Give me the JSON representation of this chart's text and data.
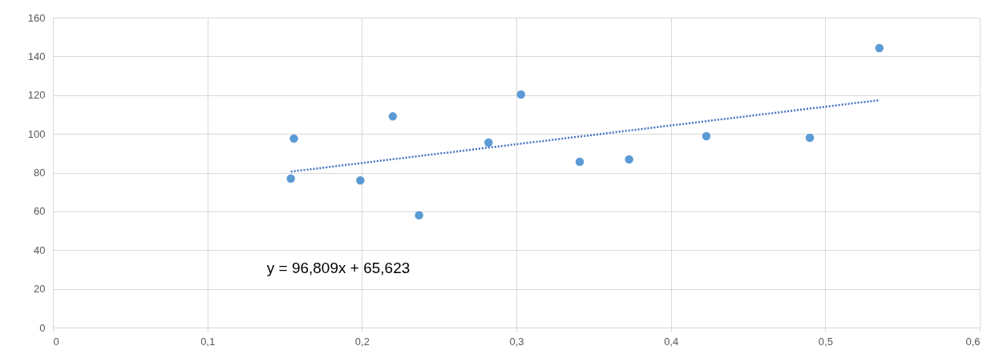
{
  "chart_data": {
    "type": "scatter",
    "marker": "circle",
    "grid": true,
    "xlim": [
      0,
      0.6
    ],
    "xticks": [
      0,
      {
        "value": 0.1,
        "label": "0,1"
      },
      {
        "value": 0.2,
        "label": "0,2"
      },
      {
        "value": 0.3,
        "label": "0,3"
      },
      {
        "value": 0.4,
        "label": "0,4"
      },
      {
        "value": 0.5,
        "label": "0,5"
      },
      {
        "value": 0.6,
        "label": "0,6"
      }
    ],
    "ylim": [
      0,
      160
    ],
    "yticks": [
      0,
      20,
      40,
      60,
      80,
      100,
      120,
      140,
      160
    ],
    "series": [
      {
        "type": "scatter",
        "color": "#5b9bd5",
        "x": [
          0.156,
          0.154,
          0.199,
          0.22,
          0.237,
          0.282,
          0.303,
          0.341,
          0.373,
          0.423,
          0.49,
          0.535
        ],
        "values": [
          97.6,
          76.9,
          76,
          109,
          58,
          95.5,
          120.3,
          85.6,
          86.8,
          98.8,
          98,
          144.3
        ]
      },
      {
        "type": "line",
        "line_style": "dotted",
        "marker": "none",
        "color": "#4472c4",
        "x": [
          0.154,
          0.535
        ],
        "values": [
          80.5,
          117.4
        ]
      }
    ],
    "annotations": [
      "y = 96,809x + 65,623"
    ]
  }
}
